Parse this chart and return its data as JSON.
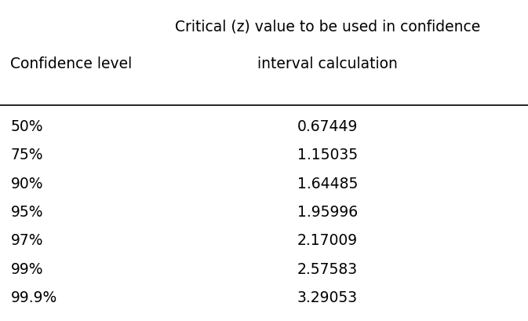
{
  "col1_header": "Confidence level",
  "col2_header_line1": "Critical (z) value to be used in confidence",
  "col2_header_line2": "interval calculation",
  "rows": [
    [
      "50%",
      "0.67449"
    ],
    [
      "75%",
      "1.15035"
    ],
    [
      "90%",
      "1.64485"
    ],
    [
      "95%",
      "1.95996"
    ],
    [
      "97%",
      "2.17009"
    ],
    [
      "99%",
      "2.57583"
    ],
    [
      "99.9%",
      "3.29053"
    ]
  ],
  "background_color": "#ffffff",
  "text_color": "#000000",
  "header_fontsize": 13.5,
  "row_fontsize": 13.5,
  "figsize": [
    6.73,
    4.1
  ],
  "dpi": 100
}
